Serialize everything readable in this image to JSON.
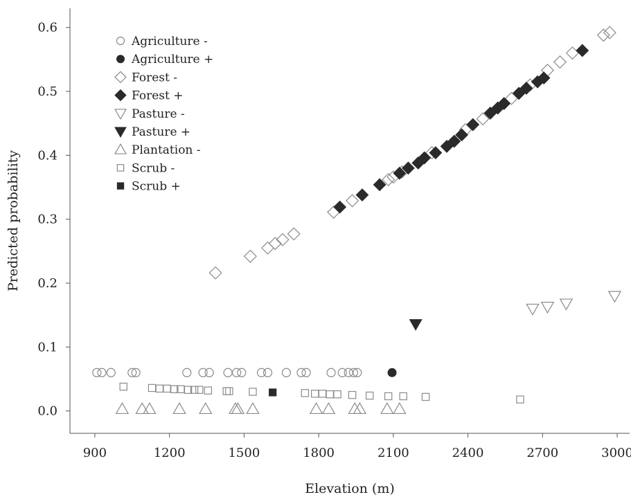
{
  "chart_data": {
    "type": "scatter",
    "xlabel": "Elevation (m)",
    "ylabel": "Predicted probability",
    "xlim": [
      800,
      3050
    ],
    "ylim": [
      -0.035,
      0.63
    ],
    "x_ticks": [
      900,
      1200,
      1500,
      1800,
      2100,
      2400,
      2700,
      3000
    ],
    "x_tick_labels": [
      "900",
      "1200",
      "1500",
      "1800",
      "2100",
      "2400",
      "2700",
      "3000"
    ],
    "y_ticks": [
      0.0,
      0.1,
      0.2,
      0.3,
      0.4,
      0.5,
      0.6
    ],
    "y_tick_labels": [
      "0.0",
      "0.1",
      "0.2",
      "0.3",
      "0.4",
      "0.5",
      "0.6"
    ],
    "grid": false,
    "legend_position": "top-left",
    "series": [
      {
        "name": "Agriculture -",
        "marker": "circle",
        "filled": false,
        "color": "#8a8a8a",
        "points": [
          [
            908,
            0.06
          ],
          [
            928,
            0.06
          ],
          [
            965,
            0.06
          ],
          [
            1050,
            0.06
          ],
          [
            1065,
            0.06
          ],
          [
            1270,
            0.06
          ],
          [
            1335,
            0.06
          ],
          [
            1360,
            0.06
          ],
          [
            1435,
            0.06
          ],
          [
            1470,
            0.06
          ],
          [
            1490,
            0.06
          ],
          [
            1570,
            0.06
          ],
          [
            1595,
            0.06
          ],
          [
            1670,
            0.06
          ],
          [
            1730,
            0.06
          ],
          [
            1750,
            0.06
          ],
          [
            1850,
            0.06
          ],
          [
            1895,
            0.06
          ],
          [
            1920,
            0.06
          ],
          [
            1940,
            0.06
          ],
          [
            1955,
            0.06
          ]
        ]
      },
      {
        "name": "Agriculture +",
        "marker": "circle",
        "filled": true,
        "color": "#2a2a2a",
        "points": [
          [
            2095,
            0.06
          ]
        ]
      },
      {
        "name": "Forest -",
        "marker": "diamond",
        "filled": false,
        "color": "#8a8a8a",
        "points": [
          [
            1385,
            0.216
          ],
          [
            1525,
            0.242
          ],
          [
            1595,
            0.255
          ],
          [
            1625,
            0.262
          ],
          [
            1655,
            0.268
          ],
          [
            1700,
            0.277
          ],
          [
            1860,
            0.311
          ],
          [
            1935,
            0.329
          ],
          [
            2080,
            0.362
          ],
          [
            2100,
            0.366
          ],
          [
            2135,
            0.374
          ],
          [
            2255,
            0.404
          ],
          [
            2390,
            0.44
          ],
          [
            2460,
            0.457
          ],
          [
            2575,
            0.489
          ],
          [
            2650,
            0.51
          ],
          [
            2720,
            0.533
          ],
          [
            2770,
            0.546
          ],
          [
            2820,
            0.56
          ],
          [
            2945,
            0.588
          ],
          [
            2970,
            0.592
          ]
        ]
      },
      {
        "name": "Forest +",
        "marker": "diamond",
        "filled": true,
        "color": "#2a2a2a",
        "points": [
          [
            1885,
            0.319
          ],
          [
            1975,
            0.338
          ],
          [
            2045,
            0.354
          ],
          [
            2125,
            0.372
          ],
          [
            2160,
            0.38
          ],
          [
            2200,
            0.388
          ],
          [
            2225,
            0.396
          ],
          [
            2270,
            0.404
          ],
          [
            2315,
            0.414
          ],
          [
            2345,
            0.422
          ],
          [
            2375,
            0.432
          ],
          [
            2420,
            0.448
          ],
          [
            2490,
            0.466
          ],
          [
            2520,
            0.474
          ],
          [
            2545,
            0.481
          ],
          [
            2605,
            0.497
          ],
          [
            2635,
            0.505
          ],
          [
            2680,
            0.515
          ],
          [
            2705,
            0.521
          ],
          [
            2860,
            0.564
          ]
        ]
      },
      {
        "name": "Pasture -",
        "marker": "triangle-down",
        "filled": false,
        "color": "#8a8a8a",
        "points": [
          [
            2660,
            0.16
          ],
          [
            2720,
            0.163
          ],
          [
            2795,
            0.168
          ],
          [
            2990,
            0.18
          ]
        ]
      },
      {
        "name": "Pasture +",
        "marker": "triangle-down",
        "filled": true,
        "color": "#2a2a2a",
        "points": [
          [
            2190,
            0.136
          ]
        ]
      },
      {
        "name": "Plantation -",
        "marker": "triangle-up",
        "filled": false,
        "color": "#8a8a8a",
        "points": [
          [
            1010,
            0.003
          ],
          [
            1090,
            0.003
          ],
          [
            1120,
            0.003
          ],
          [
            1240,
            0.003
          ],
          [
            1345,
            0.003
          ],
          [
            1465,
            0.003
          ],
          [
            1475,
            0.003
          ],
          [
            1535,
            0.003
          ],
          [
            1790,
            0.003
          ],
          [
            1840,
            0.003
          ],
          [
            1945,
            0.003
          ],
          [
            1965,
            0.003
          ],
          [
            2075,
            0.003
          ],
          [
            2125,
            0.003
          ]
        ]
      },
      {
        "name": "Scrub -",
        "marker": "square",
        "filled": false,
        "color": "#8a8a8a",
        "points": [
          [
            1015,
            0.038
          ],
          [
            1130,
            0.036
          ],
          [
            1160,
            0.035
          ],
          [
            1190,
            0.035
          ],
          [
            1220,
            0.034
          ],
          [
            1245,
            0.034
          ],
          [
            1275,
            0.033
          ],
          [
            1300,
            0.033
          ],
          [
            1320,
            0.033
          ],
          [
            1355,
            0.032
          ],
          [
            1430,
            0.031
          ],
          [
            1440,
            0.031
          ],
          [
            1535,
            0.03
          ],
          [
            1745,
            0.028
          ],
          [
            1785,
            0.027
          ],
          [
            1815,
            0.027
          ],
          [
            1845,
            0.026
          ],
          [
            1875,
            0.026
          ],
          [
            1935,
            0.025
          ],
          [
            2005,
            0.024
          ],
          [
            2080,
            0.023
          ],
          [
            2140,
            0.023
          ],
          [
            2230,
            0.022
          ],
          [
            2610,
            0.018
          ]
        ]
      },
      {
        "name": "Scrub +",
        "marker": "square",
        "filled": true,
        "color": "#2a2a2a",
        "points": [
          [
            1615,
            0.029
          ]
        ]
      }
    ]
  }
}
